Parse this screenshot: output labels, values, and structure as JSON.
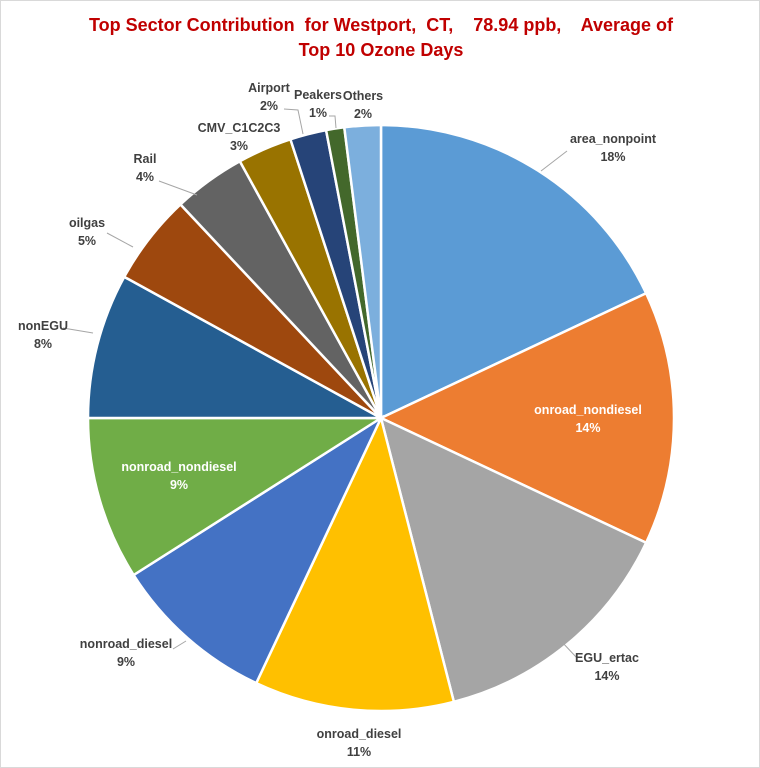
{
  "chart_data": {
    "type": "pie",
    "title_line1": "Top Sector Contribution  for Westport,  CT,    78.94 ppb,    Average of",
    "title_line2": "Top 10 Ozone Days",
    "start": "top, clockwise",
    "slices": [
      {
        "name": "area_nonpoint",
        "value": 18,
        "label": "18%",
        "color": "#5B9BD5"
      },
      {
        "name": "onroad_nondiesel",
        "value": 14,
        "label": "14%",
        "color": "#ED7D31"
      },
      {
        "name": "EGU_ertac",
        "value": 14,
        "label": "14%",
        "color": "#A5A5A5"
      },
      {
        "name": "onroad_diesel",
        "value": 11,
        "label": "11%",
        "color": "#FFC000"
      },
      {
        "name": "nonroad_diesel",
        "value": 9,
        "label": "9%",
        "color": "#4472C4"
      },
      {
        "name": "nonroad_nondiesel",
        "value": 9,
        "label": "9%",
        "color": "#70AD47"
      },
      {
        "name": "nonEGU",
        "value": 8,
        "label": "8%",
        "color": "#255E91"
      },
      {
        "name": "oilgas",
        "value": 5,
        "label": "5%",
        "color": "#9E480E"
      },
      {
        "name": "Rail",
        "value": 4,
        "label": "4%",
        "color": "#636363"
      },
      {
        "name": "CMV_C1C2C3",
        "value": 3,
        "label": "3%",
        "color": "#997300"
      },
      {
        "name": "Airport",
        "value": 2,
        "label": "2%",
        "color": "#264478"
      },
      {
        "name": "Peakers",
        "value": 1,
        "label": "1%",
        "color": "#43682B"
      },
      {
        "name": "Others",
        "value": 2,
        "label": "2%",
        "color": "#7CAFDD"
      }
    ]
  }
}
